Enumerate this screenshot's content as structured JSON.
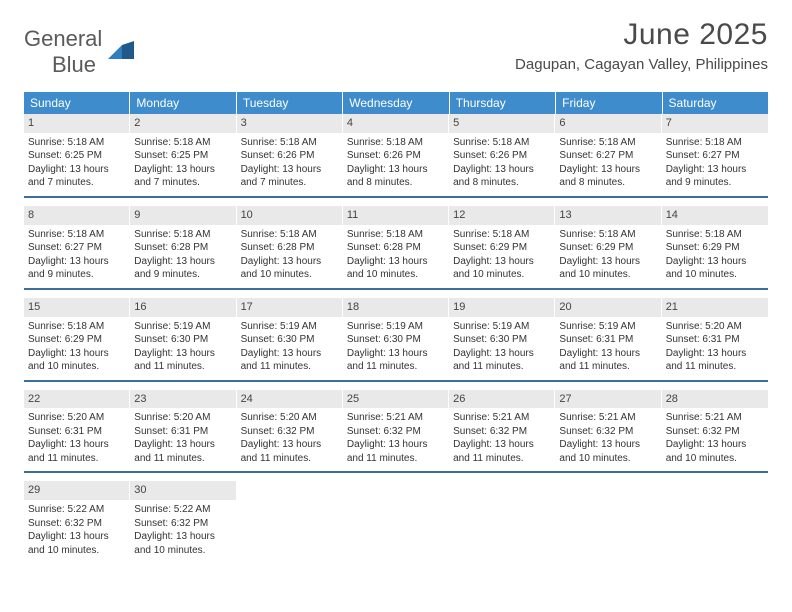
{
  "brand": {
    "part1": "General",
    "part2": "Blue"
  },
  "title": "June 2025",
  "location": "Dagupan, Cagayan Valley, Philippines",
  "colors": {
    "header_bg": "#3e8ccc",
    "header_text": "#ffffff",
    "daynum_bg": "#e9e9e9",
    "week_border": "#3a6f9c",
    "text": "#333333",
    "logo_gray": "#5a5a5a",
    "logo_blue": "#2f7fbf"
  },
  "daysOfWeek": [
    "Sunday",
    "Monday",
    "Tuesday",
    "Wednesday",
    "Thursday",
    "Friday",
    "Saturday"
  ],
  "weeks": [
    [
      {
        "n": "1",
        "sr": "5:18 AM",
        "ss": "6:25 PM",
        "dl": "13 hours and 7 minutes."
      },
      {
        "n": "2",
        "sr": "5:18 AM",
        "ss": "6:25 PM",
        "dl": "13 hours and 7 minutes."
      },
      {
        "n": "3",
        "sr": "5:18 AM",
        "ss": "6:26 PM",
        "dl": "13 hours and 7 minutes."
      },
      {
        "n": "4",
        "sr": "5:18 AM",
        "ss": "6:26 PM",
        "dl": "13 hours and 8 minutes."
      },
      {
        "n": "5",
        "sr": "5:18 AM",
        "ss": "6:26 PM",
        "dl": "13 hours and 8 minutes."
      },
      {
        "n": "6",
        "sr": "5:18 AM",
        "ss": "6:27 PM",
        "dl": "13 hours and 8 minutes."
      },
      {
        "n": "7",
        "sr": "5:18 AM",
        "ss": "6:27 PM",
        "dl": "13 hours and 9 minutes."
      }
    ],
    [
      {
        "n": "8",
        "sr": "5:18 AM",
        "ss": "6:27 PM",
        "dl": "13 hours and 9 minutes."
      },
      {
        "n": "9",
        "sr": "5:18 AM",
        "ss": "6:28 PM",
        "dl": "13 hours and 9 minutes."
      },
      {
        "n": "10",
        "sr": "5:18 AM",
        "ss": "6:28 PM",
        "dl": "13 hours and 10 minutes."
      },
      {
        "n": "11",
        "sr": "5:18 AM",
        "ss": "6:28 PM",
        "dl": "13 hours and 10 minutes."
      },
      {
        "n": "12",
        "sr": "5:18 AM",
        "ss": "6:29 PM",
        "dl": "13 hours and 10 minutes."
      },
      {
        "n": "13",
        "sr": "5:18 AM",
        "ss": "6:29 PM",
        "dl": "13 hours and 10 minutes."
      },
      {
        "n": "14",
        "sr": "5:18 AM",
        "ss": "6:29 PM",
        "dl": "13 hours and 10 minutes."
      }
    ],
    [
      {
        "n": "15",
        "sr": "5:18 AM",
        "ss": "6:29 PM",
        "dl": "13 hours and 10 minutes."
      },
      {
        "n": "16",
        "sr": "5:19 AM",
        "ss": "6:30 PM",
        "dl": "13 hours and 11 minutes."
      },
      {
        "n": "17",
        "sr": "5:19 AM",
        "ss": "6:30 PM",
        "dl": "13 hours and 11 minutes."
      },
      {
        "n": "18",
        "sr": "5:19 AM",
        "ss": "6:30 PM",
        "dl": "13 hours and 11 minutes."
      },
      {
        "n": "19",
        "sr": "5:19 AM",
        "ss": "6:30 PM",
        "dl": "13 hours and 11 minutes."
      },
      {
        "n": "20",
        "sr": "5:19 AM",
        "ss": "6:31 PM",
        "dl": "13 hours and 11 minutes."
      },
      {
        "n": "21",
        "sr": "5:20 AM",
        "ss": "6:31 PM",
        "dl": "13 hours and 11 minutes."
      }
    ],
    [
      {
        "n": "22",
        "sr": "5:20 AM",
        "ss": "6:31 PM",
        "dl": "13 hours and 11 minutes."
      },
      {
        "n": "23",
        "sr": "5:20 AM",
        "ss": "6:31 PM",
        "dl": "13 hours and 11 minutes."
      },
      {
        "n": "24",
        "sr": "5:20 AM",
        "ss": "6:32 PM",
        "dl": "13 hours and 11 minutes."
      },
      {
        "n": "25",
        "sr": "5:21 AM",
        "ss": "6:32 PM",
        "dl": "13 hours and 11 minutes."
      },
      {
        "n": "26",
        "sr": "5:21 AM",
        "ss": "6:32 PM",
        "dl": "13 hours and 11 minutes."
      },
      {
        "n": "27",
        "sr": "5:21 AM",
        "ss": "6:32 PM",
        "dl": "13 hours and 10 minutes."
      },
      {
        "n": "28",
        "sr": "5:21 AM",
        "ss": "6:32 PM",
        "dl": "13 hours and 10 minutes."
      }
    ],
    [
      {
        "n": "29",
        "sr": "5:22 AM",
        "ss": "6:32 PM",
        "dl": "13 hours and 10 minutes."
      },
      {
        "n": "30",
        "sr": "5:22 AM",
        "ss": "6:32 PM",
        "dl": "13 hours and 10 minutes."
      },
      null,
      null,
      null,
      null,
      null
    ]
  ],
  "labels": {
    "sunrise": "Sunrise: ",
    "sunset": "Sunset: ",
    "daylight": "Daylight: "
  }
}
